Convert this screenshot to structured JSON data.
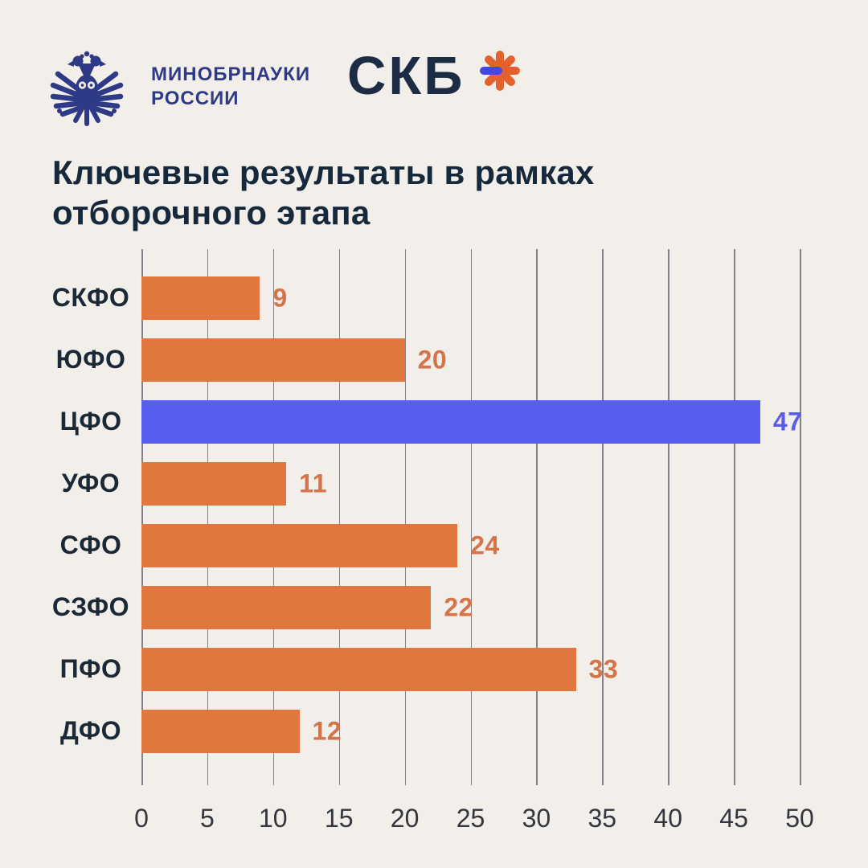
{
  "header": {
    "ministry_logo": {
      "emblem_icon": "double-headed-eagle-owl-emblem",
      "line1": "МИНОБРНАУКИ",
      "line2": "РОССИИ",
      "color": "#2e3a86"
    },
    "skb_logo": {
      "text": "СКБ",
      "asterisk_icon": "skb-asterisk",
      "text_color": "#1d2c45",
      "asterisk_orange": "#e4602c",
      "asterisk_blue": "#4348e0"
    }
  },
  "title": {
    "line1": "Ключевые результаты в рамках",
    "line2": "отборочного этапа",
    "color": "#16283c"
  },
  "chart_data": {
    "type": "bar",
    "orientation": "horizontal",
    "title": "Ключевые результаты в рамках отборочного этапа",
    "categories": [
      "СКФО",
      "ЮФО",
      "ЦФО",
      "УФО",
      "СФО",
      "СЗФО",
      "ПФО",
      "ДФО"
    ],
    "values": [
      9,
      20,
      47,
      11,
      24,
      22,
      33,
      12
    ],
    "highlight_index": 2,
    "bar_color_default": "#e2763f",
    "bar_color_highlight": "#5a5ef0",
    "value_color_default": "#d4744a",
    "value_color_highlight": "#5a5ee6",
    "x_ticks": [
      0,
      5,
      10,
      15,
      20,
      25,
      30,
      35,
      40,
      45,
      50
    ],
    "xlim": [
      0,
      50
    ],
    "grid": "vertical",
    "legend": "none",
    "xlabel": "",
    "ylabel": ""
  },
  "colors": {
    "background": "#f2eee9",
    "grid_line": "rgba(58,62,78,0.62)",
    "category_text": "#1b2936",
    "tick_text": "#33363e"
  }
}
